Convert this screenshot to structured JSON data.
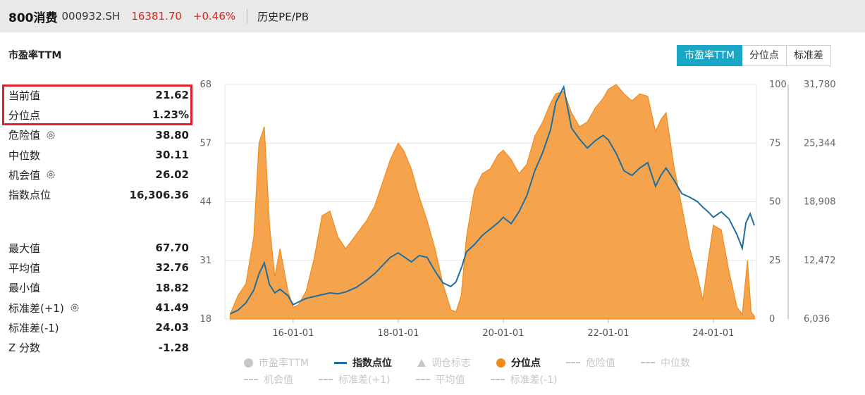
{
  "header": {
    "index_name": "800消费",
    "code": "000932.SH",
    "price": "16381.70",
    "change": "+0.46%",
    "page": "历史PE/PB"
  },
  "chart_title": "市盈率TTM",
  "tabs": [
    {
      "label": "市盈率TTM",
      "active": true
    },
    {
      "label": "分位点",
      "active": false
    },
    {
      "label": "标准差",
      "active": false
    }
  ],
  "stats_top": [
    {
      "label": "当前值",
      "value": "21.62"
    },
    {
      "label": "分位点",
      "value": "1.23%"
    },
    {
      "label": "危险值",
      "value": "38.80",
      "icon": "gear-icon"
    },
    {
      "label": "中位数",
      "value": "30.11"
    },
    {
      "label": "机会值",
      "value": "26.02",
      "icon": "gear-icon"
    },
    {
      "label": "指数点位",
      "value": "16,306.36"
    }
  ],
  "stats_bottom": [
    {
      "label": "最大值",
      "value": "67.70"
    },
    {
      "label": "平均值",
      "value": "32.76"
    },
    {
      "label": "最小值",
      "value": "18.82"
    },
    {
      "label": "标准差(+1)",
      "value": "41.49",
      "icon": "gear-icon"
    },
    {
      "label": "标准差(-1)",
      "value": "24.03"
    },
    {
      "label": "Z 分数",
      "value": "-1.28"
    }
  ],
  "legend": [
    {
      "label": "市盈率TTM",
      "marker": "circle",
      "color": "#c7c7c7",
      "active": false
    },
    {
      "label": "指数点位",
      "marker": "line",
      "color": "#1e6e9e",
      "active": true
    },
    {
      "label": "调仓标志",
      "marker": "triangle",
      "color": "#c7c7c7",
      "active": false
    },
    {
      "label": "分位点",
      "marker": "circle",
      "color": "#f28a1b",
      "active": true
    },
    {
      "label": "危险值",
      "marker": "dash",
      "color": "#c7c7c7",
      "active": false
    },
    {
      "label": "中位数",
      "marker": "dash",
      "color": "#c7c7c7",
      "active": false
    },
    {
      "label": "机会值",
      "marker": "dash",
      "color": "#c7c7c7",
      "active": false
    },
    {
      "label": "标准差(+1)",
      "marker": "dash",
      "color": "#c7c7c7",
      "active": false
    },
    {
      "label": "平均值",
      "marker": "dash",
      "color": "#c7c7c7",
      "active": false
    },
    {
      "label": "标准差(-1)",
      "marker": "dash",
      "color": "#c7c7c7",
      "active": false
    }
  ],
  "chart_data": {
    "type": "area",
    "x_ticks": [
      "16-01-01",
      "18-01-01",
      "20-01-01",
      "22-01-01",
      "24-01-01"
    ],
    "left_axis": {
      "ticks": [
        "68",
        "57",
        "44",
        "31",
        "18"
      ],
      "ylim": [
        18,
        68
      ]
    },
    "percentile_axis": {
      "ticks": [
        "100",
        "75",
        "50",
        "25",
        "0"
      ],
      "ylim": [
        0,
        100
      ]
    },
    "index_axis": {
      "ticks": [
        "31,780",
        "25,344",
        "18,908",
        "12,472",
        "6,036"
      ],
      "ylim": [
        6036,
        31780
      ]
    },
    "series": [
      {
        "name": "分位点",
        "axis": "percentile",
        "color": "#f28a1b",
        "points": [
          [
            2014.8,
            2
          ],
          [
            2014.95,
            10
          ],
          [
            2015.1,
            15
          ],
          [
            2015.25,
            35
          ],
          [
            2015.35,
            75
          ],
          [
            2015.45,
            82
          ],
          [
            2015.55,
            40
          ],
          [
            2015.65,
            18
          ],
          [
            2015.75,
            30
          ],
          [
            2015.9,
            12
          ],
          [
            2016.0,
            5
          ],
          [
            2016.1,
            6
          ],
          [
            2016.25,
            12
          ],
          [
            2016.4,
            26
          ],
          [
            2016.55,
            44
          ],
          [
            2016.7,
            46
          ],
          [
            2016.85,
            35
          ],
          [
            2017.0,
            30
          ],
          [
            2017.2,
            36
          ],
          [
            2017.4,
            42
          ],
          [
            2017.55,
            48
          ],
          [
            2017.7,
            58
          ],
          [
            2017.85,
            68
          ],
          [
            2018.0,
            75
          ],
          [
            2018.1,
            72
          ],
          [
            2018.25,
            64
          ],
          [
            2018.4,
            52
          ],
          [
            2018.55,
            42
          ],
          [
            2018.7,
            30
          ],
          [
            2018.85,
            15
          ],
          [
            2019.0,
            4
          ],
          [
            2019.1,
            3
          ],
          [
            2019.2,
            10
          ],
          [
            2019.3,
            35
          ],
          [
            2019.45,
            55
          ],
          [
            2019.6,
            62
          ],
          [
            2019.75,
            64
          ],
          [
            2019.9,
            70
          ],
          [
            2020.0,
            72
          ],
          [
            2020.15,
            68
          ],
          [
            2020.3,
            62
          ],
          [
            2020.45,
            66
          ],
          [
            2020.6,
            78
          ],
          [
            2020.75,
            84
          ],
          [
            2020.9,
            92
          ],
          [
            2021.0,
            96
          ],
          [
            2021.15,
            97
          ],
          [
            2021.3,
            88
          ],
          [
            2021.45,
            82
          ],
          [
            2021.6,
            84
          ],
          [
            2021.75,
            90
          ],
          [
            2021.9,
            94
          ],
          [
            2022.0,
            98
          ],
          [
            2022.15,
            100
          ],
          [
            2022.3,
            96
          ],
          [
            2022.45,
            93
          ],
          [
            2022.6,
            96
          ],
          [
            2022.75,
            95
          ],
          [
            2022.9,
            80
          ],
          [
            2023.0,
            85
          ],
          [
            2023.1,
            88
          ],
          [
            2023.25,
            65
          ],
          [
            2023.4,
            48
          ],
          [
            2023.55,
            30
          ],
          [
            2023.7,
            18
          ],
          [
            2023.8,
            8
          ],
          [
            2023.9,
            25
          ],
          [
            2024.0,
            40
          ],
          [
            2024.15,
            38
          ],
          [
            2024.3,
            20
          ],
          [
            2024.45,
            5
          ],
          [
            2024.55,
            2
          ],
          [
            2024.65,
            25
          ],
          [
            2024.72,
            3
          ],
          [
            2024.78,
            1.2
          ]
        ]
      },
      {
        "name": "指数点位",
        "axis": "index",
        "color": "#1e6e9e",
        "points": [
          [
            2014.8,
            6600
          ],
          [
            2014.95,
            7000
          ],
          [
            2015.1,
            7800
          ],
          [
            2015.25,
            9200
          ],
          [
            2015.35,
            11000
          ],
          [
            2015.45,
            12200
          ],
          [
            2015.55,
            9800
          ],
          [
            2015.65,
            8900
          ],
          [
            2015.75,
            9300
          ],
          [
            2015.9,
            8600
          ],
          [
            2016.0,
            7600
          ],
          [
            2016.1,
            7900
          ],
          [
            2016.25,
            8300
          ],
          [
            2016.4,
            8500
          ],
          [
            2016.55,
            8700
          ],
          [
            2016.7,
            8900
          ],
          [
            2016.85,
            8800
          ],
          [
            2017.0,
            9000
          ],
          [
            2017.2,
            9500
          ],
          [
            2017.4,
            10300
          ],
          [
            2017.55,
            11000
          ],
          [
            2017.7,
            11900
          ],
          [
            2017.85,
            12800
          ],
          [
            2018.0,
            13300
          ],
          [
            2018.1,
            12900
          ],
          [
            2018.25,
            12300
          ],
          [
            2018.4,
            13000
          ],
          [
            2018.55,
            12800
          ],
          [
            2018.7,
            11300
          ],
          [
            2018.85,
            10000
          ],
          [
            2019.0,
            9600
          ],
          [
            2019.1,
            10100
          ],
          [
            2019.2,
            11600
          ],
          [
            2019.3,
            13400
          ],
          [
            2019.45,
            14200
          ],
          [
            2019.6,
            15200
          ],
          [
            2019.75,
            15900
          ],
          [
            2019.9,
            16600
          ],
          [
            2020.0,
            17200
          ],
          [
            2020.15,
            16500
          ],
          [
            2020.3,
            17800
          ],
          [
            2020.45,
            19600
          ],
          [
            2020.6,
            22300
          ],
          [
            2020.75,
            24300
          ],
          [
            2020.9,
            26800
          ],
          [
            2021.0,
            29800
          ],
          [
            2021.15,
            31500
          ],
          [
            2021.3,
            27000
          ],
          [
            2021.45,
            25800
          ],
          [
            2021.6,
            24800
          ],
          [
            2021.75,
            25600
          ],
          [
            2021.9,
            26200
          ],
          [
            2022.0,
            25700
          ],
          [
            2022.15,
            24200
          ],
          [
            2022.3,
            22300
          ],
          [
            2022.45,
            21800
          ],
          [
            2022.6,
            22600
          ],
          [
            2022.75,
            23200
          ],
          [
            2022.9,
            20600
          ],
          [
            2023.0,
            21800
          ],
          [
            2023.1,
            22600
          ],
          [
            2023.25,
            21300
          ],
          [
            2023.4,
            19800
          ],
          [
            2023.55,
            19400
          ],
          [
            2023.7,
            18900
          ],
          [
            2023.8,
            18300
          ],
          [
            2023.9,
            17800
          ],
          [
            2024.0,
            17200
          ],
          [
            2024.15,
            17800
          ],
          [
            2024.3,
            17000
          ],
          [
            2024.45,
            15300
          ],
          [
            2024.55,
            13800
          ],
          [
            2024.62,
            16600
          ],
          [
            2024.7,
            17600
          ],
          [
            2024.78,
            16306
          ]
        ]
      }
    ],
    "grid": true
  }
}
